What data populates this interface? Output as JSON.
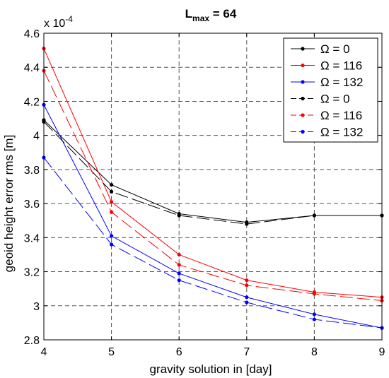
{
  "chart_data": {
    "type": "line",
    "title": "L",
    "title_subscript": "max",
    "title_suffix": " = 64",
    "xlabel": "gravity solution in [day]",
    "ylabel": "geoid height error rms [m]",
    "y_multiplier": "x 10",
    "y_multiplier_exponent": "-4",
    "x": [
      4,
      5,
      6,
      7,
      8,
      9
    ],
    "xlim": [
      4,
      9
    ],
    "ylim": [
      2.8,
      4.6
    ],
    "xticks": [
      "4",
      "5",
      "6",
      "7",
      "8",
      "9"
    ],
    "yticks": [
      "2.8",
      "3",
      "3.2",
      "3.4",
      "3.6",
      "3.8",
      "4",
      "4.2",
      "4.4",
      "4.6"
    ],
    "ytick_values": [
      2.8,
      3.0,
      3.2,
      3.4,
      3.6,
      3.8,
      4.0,
      4.2,
      4.4,
      4.6
    ],
    "grid": true,
    "legend_placement": "top-right",
    "series": [
      {
        "name": "Ω = 0",
        "color": "#000000",
        "dash": "solid",
        "values": [
          4.09,
          3.71,
          3.54,
          3.49,
          3.53,
          3.53
        ]
      },
      {
        "name": "Ω = 116",
        "color": "#ff0000",
        "dash": "solid",
        "values": [
          4.51,
          3.61,
          3.3,
          3.15,
          3.08,
          3.05
        ]
      },
      {
        "name": "Ω = 132",
        "color": "#0000ff",
        "dash": "solid",
        "values": [
          4.18,
          3.41,
          3.19,
          3.05,
          2.95,
          2.87
        ]
      },
      {
        "name": "Ω = 0",
        "color": "#000000",
        "dash": "dashed",
        "values": [
          4.08,
          3.67,
          3.53,
          3.48,
          3.53,
          3.53
        ]
      },
      {
        "name": "Ω = 116",
        "color": "#ff0000",
        "dash": "dashed",
        "values": [
          4.38,
          3.55,
          3.24,
          3.12,
          3.07,
          3.03
        ]
      },
      {
        "name": "Ω = 132",
        "color": "#0000ff",
        "dash": "dashed",
        "values": [
          3.87,
          3.36,
          3.15,
          3.02,
          2.92,
          2.87
        ]
      }
    ]
  }
}
